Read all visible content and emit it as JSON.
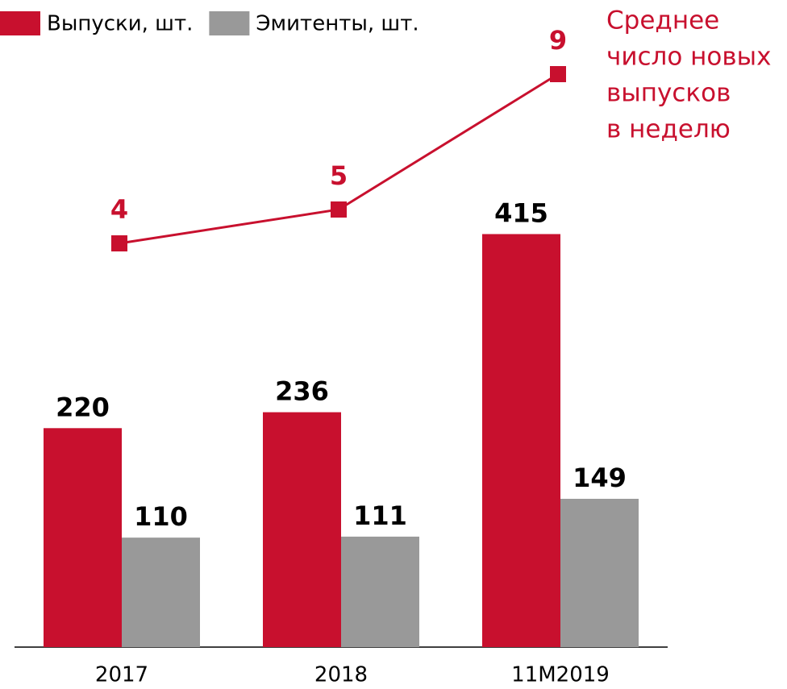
{
  "chart_data": {
    "type": "bar",
    "categories": [
      "2017",
      "2018",
      "11M2019"
    ],
    "series": [
      {
        "name": "Выпуски, шт.",
        "color": "#c8102e",
        "values": [
          220,
          236,
          415
        ]
      },
      {
        "name": "Эмитенты, шт.",
        "color": "#999999",
        "values": [
          110,
          111,
          149
        ]
      },
      {
        "type": "line",
        "axis": "y2",
        "color": "#c8102e",
        "values": [
          4,
          5,
          9
        ]
      }
    ],
    "annotation": [
      "Среднее",
      "число новых",
      "выпусков",
      "в неделю"
    ],
    "ylim": [
      0,
      600
    ],
    "y2lim": [
      0,
      10
    ],
    "grid": false
  }
}
